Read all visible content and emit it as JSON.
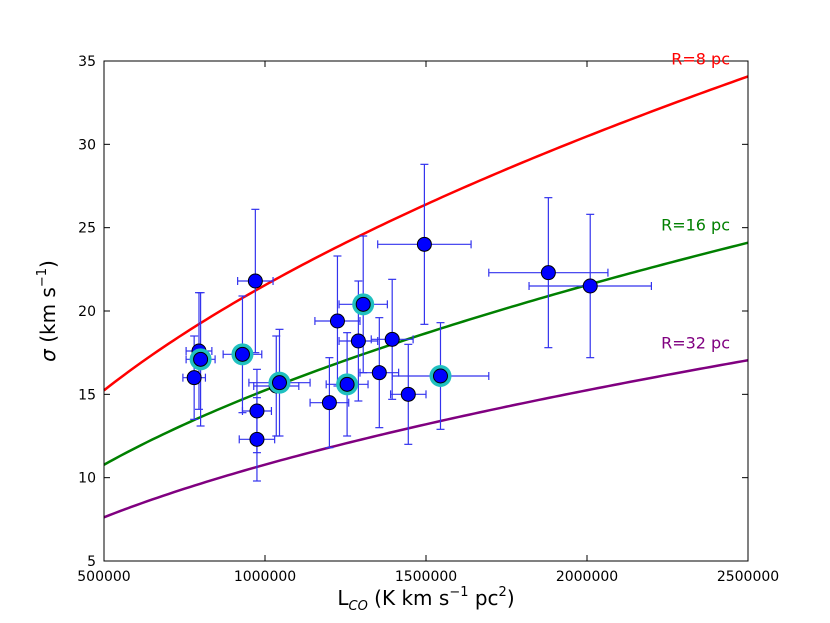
{
  "chart_data": {
    "type": "scatter",
    "title": "",
    "xlabel": {
      "main": "L",
      "sub": "CO",
      "rest": " (K km s",
      "sup1": "−1",
      "mid": " pc",
      "sup2": "2",
      "close": ")"
    },
    "ylabel": {
      "sigma": "σ",
      "rest": " (km s",
      "sup": "−1",
      "close": ")"
    },
    "xlim": [
      500000,
      2500000
    ],
    "ylim": [
      5,
      35
    ],
    "xticks": [
      500000,
      1000000,
      1500000,
      2000000,
      2500000
    ],
    "xtick_labels": [
      "500000",
      "1000000",
      "1500000",
      "2000000",
      "2500000"
    ],
    "yticks": [
      5,
      10,
      15,
      20,
      25,
      30,
      35
    ],
    "ytick_labels": [
      "5",
      "10",
      "15",
      "20",
      "25",
      "30",
      "35"
    ],
    "curves": [
      {
        "label": "R=8 pc",
        "color": "#ff0000",
        "coefficient": 0.02155
      },
      {
        "label": "R=16 pc",
        "color": "#008000",
        "coefficient": 0.01524
      },
      {
        "label": "R=32 pc",
        "color": "#800080",
        "coefficient": 0.01078
      }
    ],
    "curve_form": "sigma = coefficient * sqrt(L_CO)",
    "points": [
      {
        "x": 780000,
        "y": 16.0,
        "xerr": 35000,
        "yerr": 2.5,
        "highlight": false
      },
      {
        "x": 795000,
        "y": 17.6,
        "xerr": 40000,
        "yerr": 3.5,
        "highlight": false
      },
      {
        "x": 800000,
        "y": 17.1,
        "xerr": 45000,
        "yerr": 4.0,
        "highlight": true
      },
      {
        "x": 930000,
        "y": 17.4,
        "xerr": 60000,
        "yerr": 3.5,
        "highlight": true
      },
      {
        "x": 970000,
        "y": 21.8,
        "xerr": 55000,
        "yerr": 4.3,
        "highlight": false
      },
      {
        "x": 975000,
        "y": 14.0,
        "xerr": 45000,
        "yerr": 2.5,
        "highlight": false
      },
      {
        "x": 975000,
        "y": 12.3,
        "xerr": 55000,
        "yerr": 2.5,
        "highlight": false
      },
      {
        "x": 1035000,
        "y": 15.5,
        "xerr": 70000,
        "yerr": 3.0,
        "highlight": false
      },
      {
        "x": 1045000,
        "y": 15.7,
        "xerr": 95000,
        "yerr": 3.2,
        "highlight": true
      },
      {
        "x": 1200000,
        "y": 14.5,
        "xerr": 60000,
        "yerr": 2.7,
        "highlight": false
      },
      {
        "x": 1225000,
        "y": 19.4,
        "xerr": 70000,
        "yerr": 3.9,
        "highlight": false
      },
      {
        "x": 1255000,
        "y": 15.6,
        "xerr": 65000,
        "yerr": 3.1,
        "highlight": true
      },
      {
        "x": 1290000,
        "y": 18.2,
        "xerr": 60000,
        "yerr": 3.6,
        "highlight": false
      },
      {
        "x": 1305000,
        "y": 20.4,
        "xerr": 75000,
        "yerr": 4.1,
        "highlight": true
      },
      {
        "x": 1355000,
        "y": 16.3,
        "xerr": 60000,
        "yerr": 3.3,
        "highlight": false
      },
      {
        "x": 1395000,
        "y": 18.3,
        "xerr": 65000,
        "yerr": 3.6,
        "highlight": false
      },
      {
        "x": 1445000,
        "y": 15.0,
        "xerr": 55000,
        "yerr": 3.0,
        "highlight": false
      },
      {
        "x": 1495000,
        "y": 24.0,
        "xerr": 145000,
        "yerr": 4.8,
        "highlight": false
      },
      {
        "x": 1545000,
        "y": 16.1,
        "xerr": 150000,
        "yerr": 3.2,
        "highlight": true
      },
      {
        "x": 1880000,
        "y": 22.3,
        "xerr": 185000,
        "yerr": 4.5,
        "highlight": false
      },
      {
        "x": 2010000,
        "y": 21.5,
        "xerr": 190000,
        "yerr": 4.3,
        "highlight": false
      }
    ],
    "marker_color": "#0000ff",
    "errorbar_color": "#3333ee",
    "highlight_color": "#20c0c0",
    "grid": false,
    "legend": "none"
  }
}
